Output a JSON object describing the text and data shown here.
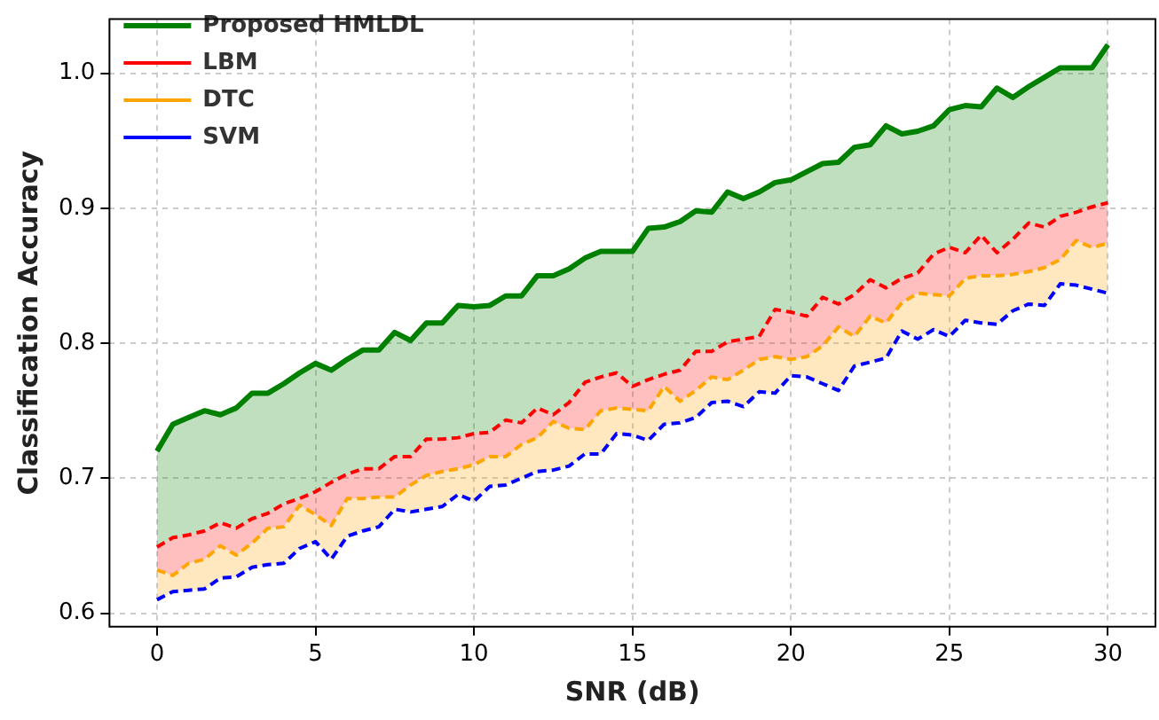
{
  "chart_data": {
    "type": "line",
    "xlabel": "SNR (dB)",
    "ylabel": "Classification Accuracy",
    "x": [
      0,
      0.5,
      1,
      1.5,
      2,
      2.5,
      3,
      3.5,
      4,
      4.5,
      5,
      5.5,
      6,
      6.5,
      7,
      7.5,
      8,
      8.5,
      9,
      9.5,
      10,
      10.5,
      11,
      11.5,
      12,
      12.5,
      13,
      13.5,
      14,
      14.5,
      15,
      15.5,
      16,
      16.5,
      17,
      17.5,
      18,
      18.5,
      19,
      19.5,
      20,
      20.5,
      21,
      21.5,
      22,
      22.5,
      23,
      23.5,
      24,
      24.5,
      25,
      25.5,
      26,
      26.5,
      27,
      27.5,
      28,
      28.5,
      29,
      29.5,
      30
    ],
    "series": [
      {
        "name": "Proposed HMLDL",
        "type": "area",
        "color": "#008000",
        "line_style": "solid",
        "values": [
          0.72,
          0.74,
          0.745,
          0.75,
          0.747,
          0.752,
          0.763,
          0.763,
          0.77,
          0.778,
          0.785,
          0.78,
          0.788,
          0.795,
          0.795,
          0.808,
          0.802,
          0.815,
          0.815,
          0.828,
          0.827,
          0.828,
          0.835,
          0.835,
          0.85,
          0.85,
          0.855,
          0.863,
          0.868,
          0.868,
          0.868,
          0.885,
          0.886,
          0.89,
          0.898,
          0.897,
          0.912,
          0.907,
          0.912,
          0.919,
          0.921,
          0.927,
          0.933,
          0.934,
          0.945,
          0.947,
          0.961,
          0.955,
          0.957,
          0.961,
          0.973,
          0.976,
          0.975,
          0.989,
          0.982,
          0.99,
          0.997,
          1.004,
          1.004,
          1.004,
          1.021
        ]
      },
      {
        "name": "LBM",
        "type": "area",
        "color": "#ff0000",
        "line_style": "dashed",
        "values": [
          0.649,
          0.656,
          0.658,
          0.661,
          0.667,
          0.663,
          0.67,
          0.674,
          0.681,
          0.685,
          0.69,
          0.697,
          0.703,
          0.707,
          0.707,
          0.716,
          0.716,
          0.729,
          0.729,
          0.73,
          0.733,
          0.734,
          0.743,
          0.741,
          0.752,
          0.747,
          0.756,
          0.771,
          0.775,
          0.778,
          0.768,
          0.773,
          0.777,
          0.78,
          0.794,
          0.794,
          0.801,
          0.803,
          0.805,
          0.825,
          0.823,
          0.82,
          0.834,
          0.829,
          0.836,
          0.847,
          0.841,
          0.848,
          0.852,
          0.866,
          0.871,
          0.867,
          0.88,
          0.867,
          0.877,
          0.889,
          0.886,
          0.894,
          0.897,
          0.901,
          0.904
        ]
      },
      {
        "name": "DTC",
        "type": "area",
        "color": "#ffa500",
        "line_style": "dashed",
        "values": [
          0.632,
          0.628,
          0.637,
          0.64,
          0.65,
          0.643,
          0.652,
          0.663,
          0.664,
          0.68,
          0.673,
          0.665,
          0.685,
          0.685,
          0.686,
          0.686,
          0.695,
          0.702,
          0.705,
          0.707,
          0.71,
          0.716,
          0.716,
          0.725,
          0.73,
          0.742,
          0.737,
          0.736,
          0.75,
          0.752,
          0.751,
          0.75,
          0.768,
          0.757,
          0.765,
          0.775,
          0.773,
          0.78,
          0.788,
          0.79,
          0.788,
          0.79,
          0.798,
          0.812,
          0.805,
          0.82,
          0.815,
          0.83,
          0.837,
          0.836,
          0.835,
          0.848,
          0.85,
          0.85,
          0.851,
          0.853,
          0.856,
          0.862,
          0.876,
          0.871,
          0.874
        ]
      },
      {
        "name": "SVM",
        "color": "#0000ff",
        "line_style": "dashed",
        "values": [
          0.61,
          0.616,
          0.617,
          0.618,
          0.626,
          0.627,
          0.634,
          0.636,
          0.637,
          0.648,
          0.653,
          0.64,
          0.657,
          0.661,
          0.664,
          0.677,
          0.675,
          0.677,
          0.679,
          0.688,
          0.683,
          0.694,
          0.695,
          0.7,
          0.705,
          0.706,
          0.709,
          0.718,
          0.718,
          0.733,
          0.732,
          0.728,
          0.74,
          0.741,
          0.745,
          0.756,
          0.757,
          0.753,
          0.764,
          0.763,
          0.776,
          0.775,
          0.77,
          0.765,
          0.783,
          0.786,
          0.789,
          0.809,
          0.803,
          0.81,
          0.805,
          0.817,
          0.815,
          0.814,
          0.824,
          0.829,
          0.828,
          0.844,
          0.843,
          0.84,
          0.837
        ]
      }
    ],
    "xlim": [
      -1.5,
      31.5
    ],
    "xticks": [
      0,
      5,
      10,
      15,
      20,
      25,
      30
    ],
    "ylim": [
      0.59,
      1.04
    ],
    "yticks": [
      0.6,
      0.7,
      0.8,
      0.9,
      {
        "value": 1.0,
        "label": "1.0"
      }
    ],
    "grid": true,
    "legend": "top left",
    "marker": "none"
  }
}
